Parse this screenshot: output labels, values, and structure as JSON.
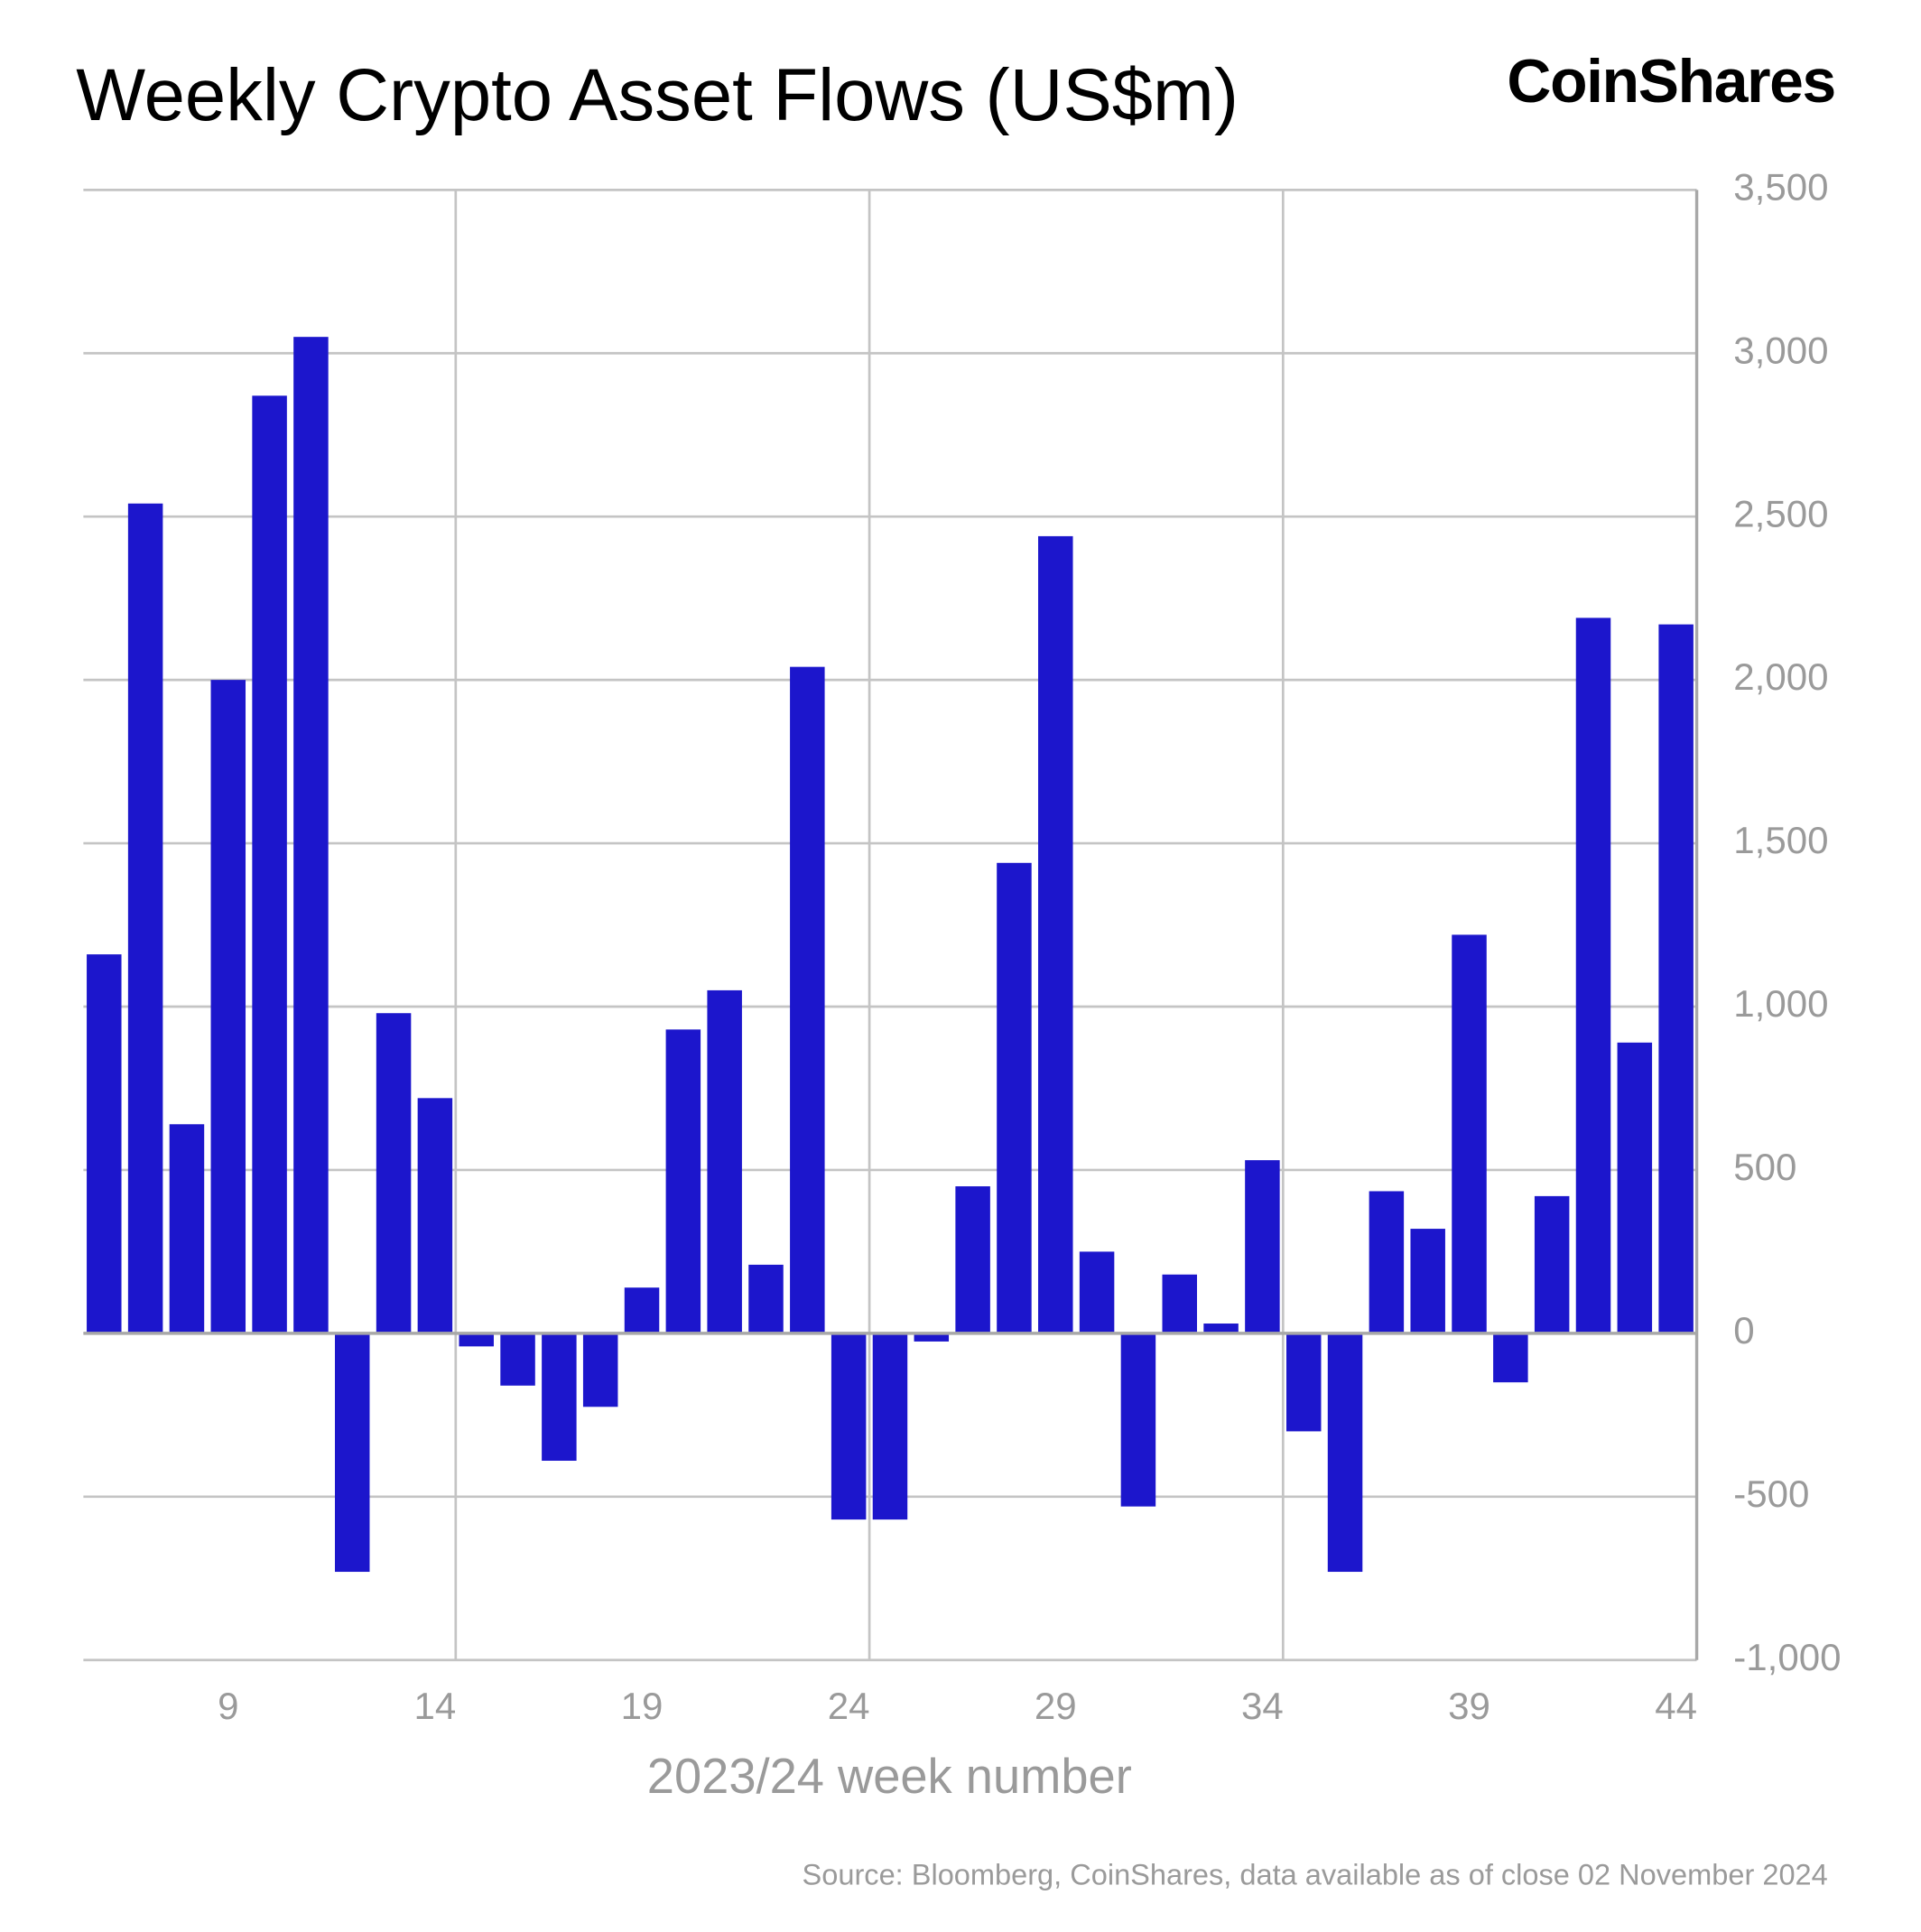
{
  "chart_data": {
    "type": "bar",
    "title": "Weekly Crypto Asset Flows (US$m)",
    "brand": "CoinShares",
    "x_label": "2023/24 week number",
    "source": "Source: Bloomberg, CoinShares, data available as of close 02 November 2024",
    "categories": [
      null,
      null,
      null,
      "9",
      null,
      null,
      null,
      null,
      "14",
      null,
      null,
      null,
      null,
      "19",
      null,
      null,
      null,
      null,
      "24",
      null,
      null,
      null,
      null,
      "29",
      null,
      null,
      null,
      null,
      "34",
      null,
      null,
      null,
      null,
      "39",
      null,
      null,
      null,
      null,
      "44"
    ],
    "values": [
      1160,
      2540,
      640,
      2000,
      2870,
      3050,
      -730,
      980,
      720,
      -40,
      -160,
      -390,
      -225,
      140,
      930,
      1050,
      210,
      2040,
      -570,
      -570,
      -25,
      450,
      1440,
      2440,
      250,
      -530,
      180,
      30,
      530,
      -300,
      -730,
      435,
      320,
      1220,
      -150,
      420,
      2190,
      890,
      2170
    ],
    "color": "#1c16cc",
    "ylim": [
      -1000,
      3500
    ],
    "yticks": [
      {
        "value": -1000,
        "label": "-1,000"
      },
      {
        "value": -500,
        "label": "-500"
      },
      0,
      500,
      {
        "value": 1000,
        "label": "1,000"
      },
      {
        "value": 1500,
        "label": "1,500"
      },
      {
        "value": 2000,
        "label": "2,000"
      },
      {
        "value": 2500,
        "label": "2,500"
      },
      {
        "value": 3000,
        "label": "3,000"
      },
      {
        "value": 3500,
        "label": "3,500"
      }
    ],
    "grid": true
  }
}
